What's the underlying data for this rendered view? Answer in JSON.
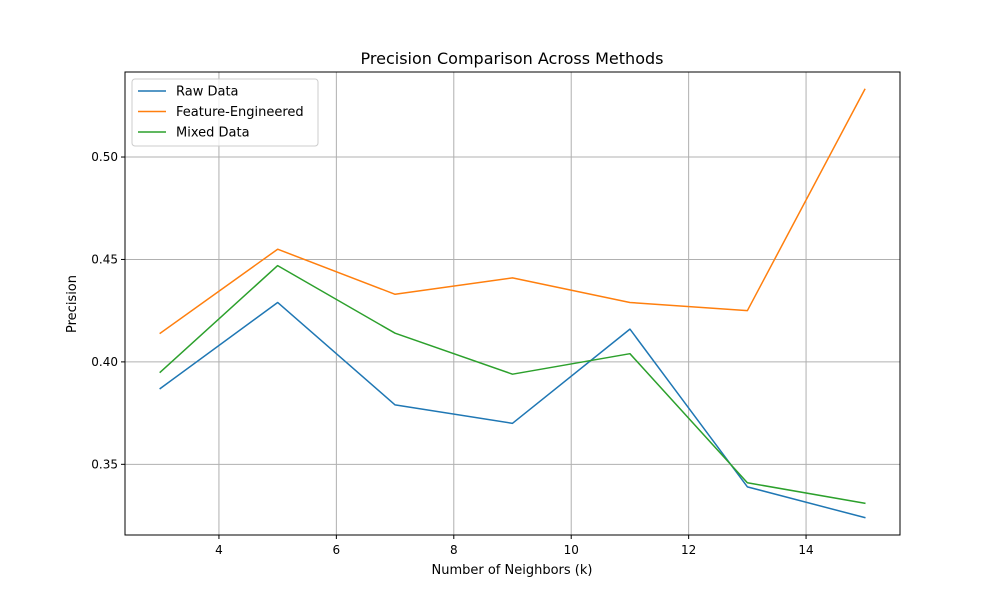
{
  "chart_data": {
    "type": "line",
    "title": "Precision Comparison Across Methods",
    "xlabel": "Number of Neighbors (k)",
    "ylabel": "Precision",
    "x": [
      3,
      5,
      7,
      9,
      11,
      13,
      15
    ],
    "xlim": [
      2.4,
      15.6
    ],
    "ylim": [
      0.3155,
      0.5415
    ],
    "xticks": [
      4,
      6,
      8,
      10,
      12,
      14
    ],
    "yticks": [
      0.35,
      0.4,
      0.45,
      0.5
    ],
    "ytick_labels": [
      "0.35",
      "0.40",
      "0.45",
      "0.50"
    ],
    "grid": true,
    "legend_position": "upper-left",
    "series": [
      {
        "name": "Raw Data",
        "color": "#1f77b4",
        "values": [
          0.387,
          0.429,
          0.379,
          0.37,
          0.416,
          0.339,
          0.324
        ]
      },
      {
        "name": "Feature-Engineered",
        "color": "#ff7f0e",
        "values": [
          0.414,
          0.455,
          0.433,
          0.441,
          0.429,
          0.425,
          0.533
        ]
      },
      {
        "name": "Mixed Data",
        "color": "#2ca02c",
        "values": [
          0.395,
          0.447,
          0.414,
          0.394,
          0.404,
          0.341,
          0.331
        ]
      }
    ]
  }
}
